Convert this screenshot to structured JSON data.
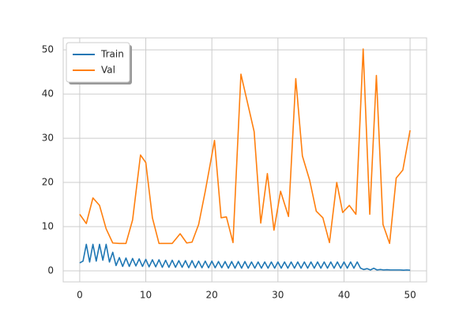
{
  "chart_data": {
    "type": "line",
    "xlim": [
      -2.5,
      52.5
    ],
    "xticks": [
      0,
      10,
      20,
      30,
      40,
      50
    ],
    "ylim": [
      -2.5,
      52.7
    ],
    "yticks": [
      0,
      10,
      20,
      30,
      40,
      50
    ],
    "grid": true,
    "legend": "upper left",
    "series": [
      {
        "name": "Train",
        "color": "#1f77b4",
        "x": [
          0,
          0.5,
          1,
          1.5,
          2,
          2.5,
          3,
          3.5,
          4,
          4.5,
          5,
          5.5,
          6,
          6.5,
          7,
          7.5,
          8,
          8.5,
          9,
          9.5,
          10,
          10.5,
          11,
          11.5,
          12,
          12.5,
          13,
          13.5,
          14,
          14.5,
          15,
          15.5,
          16,
          16.5,
          17,
          17.5,
          18,
          18.5,
          19,
          19.5,
          20,
          20.5,
          21,
          21.5,
          22,
          22.5,
          23,
          23.5,
          24,
          24.5,
          25,
          25.5,
          26,
          26.5,
          27,
          27.5,
          28,
          28.5,
          29,
          29.5,
          30,
          30.5,
          31,
          31.5,
          32,
          32.5,
          33,
          33.5,
          34,
          34.5,
          35,
          35.5,
          36,
          36.5,
          37,
          37.5,
          38,
          38.5,
          39,
          39.5,
          40,
          40.5,
          41,
          41.5,
          42,
          42.5,
          43,
          43.5,
          44,
          44.5,
          45,
          45.5,
          46,
          46.5,
          47,
          47.5,
          48,
          48.5,
          49,
          49.5,
          50
        ],
        "values": [
          1.8,
          2.2,
          6.0,
          2.0,
          6.0,
          2.2,
          6.0,
          2.4,
          6.0,
          2.0,
          4.2,
          1.2,
          3.0,
          1.0,
          2.9,
          1.0,
          2.8,
          1.1,
          2.7,
          1.0,
          2.6,
          0.9,
          2.5,
          0.9,
          2.5,
          0.8,
          2.4,
          0.8,
          2.4,
          0.8,
          2.3,
          0.8,
          2.3,
          0.7,
          2.3,
          0.7,
          2.2,
          0.7,
          2.2,
          0.7,
          2.2,
          0.7,
          2.1,
          0.7,
          2.1,
          0.6,
          2.1,
          0.6,
          2.1,
          0.6,
          2.1,
          0.6,
          2.0,
          0.6,
          2.0,
          0.6,
          2.0,
          0.6,
          2.0,
          0.6,
          2.0,
          0.6,
          2.0,
          0.6,
          2.0,
          0.6,
          2.0,
          0.6,
          2.0,
          0.6,
          2.0,
          0.6,
          2.0,
          0.6,
          2.0,
          0.6,
          2.0,
          0.6,
          2.0,
          0.6,
          2.0,
          0.6,
          2.0,
          0.6,
          2.0,
          0.6,
          0.3,
          0.5,
          0.2,
          0.6,
          0.2,
          0.3,
          0.2,
          0.25,
          0.2,
          0.2,
          0.2,
          0.2,
          0.15,
          0.2,
          0.15
        ]
      },
      {
        "name": "Val",
        "color": "#ff7f0e",
        "x": [
          0,
          1,
          2,
          3,
          4,
          5,
          6,
          7,
          8,
          9.2,
          10,
          11,
          12,
          13,
          14,
          15.2,
          16.2,
          17,
          18,
          19,
          20.4,
          21.4,
          22.2,
          23.2,
          24.4,
          25.4,
          26.4,
          27.4,
          28.4,
          29.4,
          30.4,
          31.6,
          32.7,
          33.7,
          34.8,
          35.8,
          36.8,
          37.8,
          38.9,
          39.8,
          40.8,
          41.8,
          42.9,
          43.9,
          44.9,
          45.9,
          46.9,
          47.9,
          48.9,
          50
        ],
        "values": [
          12.8,
          10.7,
          16.5,
          14.8,
          9.5,
          6.3,
          6.2,
          6.2,
          11.5,
          26.2,
          24.5,
          12,
          6.2,
          6.2,
          6.2,
          8.4,
          6.3,
          6.5,
          10.5,
          18,
          29.5,
          12,
          12.2,
          6.4,
          44.5,
          38,
          31.5,
          10.8,
          22,
          9.2,
          18,
          12.3,
          43.5,
          26,
          20.5,
          13.5,
          12,
          6.4,
          20,
          13.2,
          14.8,
          12.8,
          50.2,
          12.8,
          44.2,
          10.5,
          6.2,
          21,
          22.8,
          31.8
        ]
      }
    ]
  }
}
